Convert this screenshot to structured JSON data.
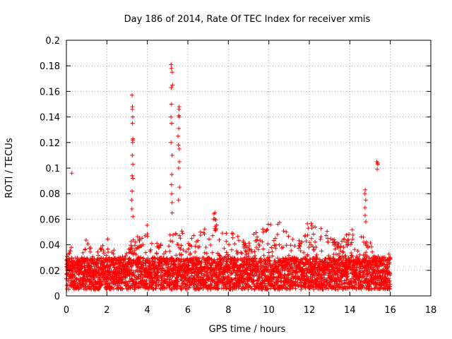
{
  "chart_data": {
    "type": "scatter",
    "title": "Day 186 of 2014, Rate Of TEC Index for receiver xmis",
    "xlabel": "GPS time / hours",
    "ylabel": "ROTI / TECUs",
    "xlim": [
      0,
      18
    ],
    "ylim": [
      0,
      0.2
    ],
    "xticks": [
      0,
      2,
      4,
      6,
      8,
      10,
      12,
      14,
      16,
      18
    ],
    "yticks": [
      0,
      0.02,
      0.04,
      0.06,
      0.08,
      0.1,
      0.12,
      0.14,
      0.16,
      0.18,
      0.2
    ],
    "grid": true,
    "marker": "+",
    "series_color": "#ff0000",
    "time_range": [
      0,
      16
    ],
    "baseline_band": [
      0.005,
      0.03
    ],
    "envelope": [
      [
        0,
        0.03
      ],
      [
        0.3,
        0.04
      ],
      [
        0.6,
        0.028
      ],
      [
        1.0,
        0.045
      ],
      [
        1.4,
        0.03
      ],
      [
        2.0,
        0.048
      ],
      [
        2.5,
        0.032
      ],
      [
        3.0,
        0.038
      ],
      [
        3.4,
        0.05
      ],
      [
        3.8,
        0.055
      ],
      [
        4.2,
        0.058
      ],
      [
        4.6,
        0.042
      ],
      [
        5.0,
        0.048
      ],
      [
        5.5,
        0.055
      ],
      [
        6.0,
        0.045
      ],
      [
        6.5,
        0.05
      ],
      [
        7.0,
        0.055
      ],
      [
        7.3,
        0.07
      ],
      [
        7.8,
        0.05
      ],
      [
        8.2,
        0.05
      ],
      [
        8.8,
        0.045
      ],
      [
        9.3,
        0.05
      ],
      [
        9.8,
        0.055
      ],
      [
        10.5,
        0.06
      ],
      [
        11.0,
        0.048
      ],
      [
        11.5,
        0.045
      ],
      [
        12.0,
        0.062
      ],
      [
        12.5,
        0.055
      ],
      [
        13.0,
        0.05
      ],
      [
        13.5,
        0.04
      ],
      [
        14.0,
        0.055
      ],
      [
        14.5,
        0.05
      ],
      [
        15.0,
        0.045
      ],
      [
        15.5,
        0.03
      ],
      [
        16.0,
        0.035
      ]
    ],
    "spikes": [
      {
        "x": 0.28,
        "values": [
          0.096,
          0.038
        ]
      },
      {
        "x": 3.25,
        "values": [
          0.157,
          0.148,
          0.146,
          0.14,
          0.135,
          0.123,
          0.122,
          0.12,
          0.11,
          0.103,
          0.094,
          0.092,
          0.082,
          0.075,
          0.068,
          0.062
        ]
      },
      {
        "x": 5.2,
        "values": [
          0.181,
          0.178,
          0.175,
          0.165,
          0.163,
          0.15,
          0.14,
          0.135,
          0.12,
          0.11,
          0.095,
          0.087,
          0.08,
          0.073,
          0.065
        ]
      },
      {
        "x": 5.55,
        "values": [
          0.148,
          0.146,
          0.141,
          0.14,
          0.131,
          0.125,
          0.118,
          0.115,
          0.105,
          0.1,
          0.085,
          0.075
        ]
      },
      {
        "x": 14.75,
        "values": [
          0.083,
          0.08,
          0.075,
          0.069,
          0.063,
          0.058
        ]
      },
      {
        "x": 15.35,
        "values": [
          0.105,
          0.104,
          0.103,
          0.099
        ]
      }
    ]
  }
}
